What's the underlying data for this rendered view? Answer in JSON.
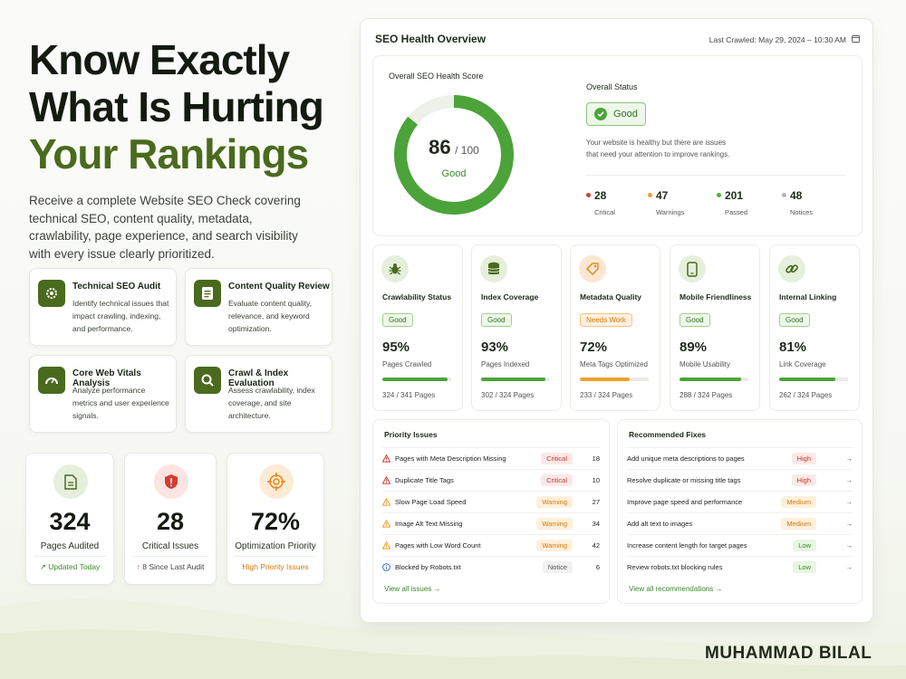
{
  "hero": {
    "line1": "Know Exactly",
    "line2": "What Is Hurting",
    "line3": "Your Rankings",
    "lead": "Receive a complete Website SEO Check covering technical SEO, content quality, metadata, crawlability, page experience, and search visibility with every issue clearly prioritized."
  },
  "features": [
    {
      "title": "Technical SEO Audit",
      "desc": "Identify technical issues that impact crawling, indexing, and performance.",
      "icon": "gear-icon"
    },
    {
      "title": "Content Quality Review",
      "desc": "Evaluate content quality, relevance, and keyword optimization.",
      "icon": "document-icon"
    },
    {
      "title": "Core Web Vitals Analysis",
      "desc": "Analyze performance metrics and user experience signals.",
      "icon": "gauge-icon"
    },
    {
      "title": "Crawl & Index Evaluation",
      "desc": "Assess crawlability, index coverage, and site architecture.",
      "icon": "search-icon"
    }
  ],
  "stats": [
    {
      "num": "324",
      "label": "Pages Audited",
      "sub": "Updated Today",
      "sub_color": "#3b8a2b",
      "icon": "page-icon"
    },
    {
      "num": "28",
      "label": "Critical Issues",
      "sub": "8 Since Last Audit",
      "sub_color": "#c0392b",
      "icon": "shield-alert-icon"
    },
    {
      "num": "72%",
      "label": "Optimization Priority",
      "sub": "High Priority Issues",
      "sub_color": "#d97706",
      "icon": "target-icon"
    }
  ],
  "dashboard": {
    "title": "SEO Health Overview",
    "last_crawled": "Last Crawled: May 29, 2024 – 10:30 AM",
    "score_title": "Overall SEO Health Score",
    "score": "86",
    "score_max": "/ 100",
    "score_value": 86,
    "score_label": "Good",
    "status_title": "Overall Status",
    "status": "Good",
    "status_desc1": "Your website is healthy but there are issues",
    "status_desc2": "that need your attention to improve rankings.",
    "counts": [
      {
        "num": "28",
        "label": "Critical",
        "color": "#d63b2f"
      },
      {
        "num": "47",
        "label": "Warnings",
        "color": "#f0a12b"
      },
      {
        "num": "201",
        "label": "Passed",
        "color": "#4caf3a"
      },
      {
        "num": "48",
        "label": "Notices",
        "color": "#b5b5b5"
      }
    ],
    "metrics": [
      {
        "title": "Crawlability Status",
        "badge": "Good",
        "pct": "95%",
        "pct_value": 0.95,
        "sub": "Pages Crawled",
        "count": "324 / 341 Pages",
        "icon": "bug-icon",
        "tone": "good"
      },
      {
        "title": "Index Coverage",
        "badge": "Good",
        "pct": "93%",
        "pct_value": 0.93,
        "sub": "Pages Indexed",
        "count": "302 / 324 Pages",
        "icon": "database-icon",
        "tone": "good"
      },
      {
        "title": "Metadata Quality",
        "badge": "Needs Work",
        "pct": "72%",
        "pct_value": 0.72,
        "sub": "Meta Tags Optimized",
        "count": "233 / 324 Pages",
        "icon": "tag-icon",
        "tone": "warn"
      },
      {
        "title": "Mobile Friendliness",
        "badge": "Good",
        "pct": "89%",
        "pct_value": 0.89,
        "sub": "Mobile Usability",
        "count": "288 / 324 Pages",
        "icon": "mobile-icon",
        "tone": "good"
      },
      {
        "title": "Internal Linking",
        "badge": "Good",
        "pct": "81%",
        "pct_value": 0.81,
        "sub": "Link Coverage",
        "count": "262 / 324 Pages",
        "icon": "link-icon",
        "tone": "good"
      }
    ],
    "priority": {
      "title": "Priority Issues",
      "link": "View all issues →",
      "rows": [
        {
          "text": "Pages with Meta Description Missing",
          "badge": "Critical",
          "num": "18",
          "kind": "crit"
        },
        {
          "text": "Duplicate Title Tags",
          "badge": "Critical",
          "num": "10",
          "kind": "crit"
        },
        {
          "text": "Slow Page Load Speed",
          "badge": "Warning",
          "num": "27",
          "kind": "warn"
        },
        {
          "text": "Image Alt Text Missing",
          "badge": "Warning",
          "num": "34",
          "kind": "warn"
        },
        {
          "text": "Pages with Low Word Count",
          "badge": "Warning",
          "num": "42",
          "kind": "warn"
        },
        {
          "text": "Blocked by Robots.txt",
          "badge": "Notice",
          "num": "6",
          "kind": "notc"
        }
      ]
    },
    "fixes": {
      "title": "Recommended Fixes",
      "link": "View all recommendations →",
      "rows": [
        {
          "text": "Add unique meta descriptions to pages",
          "badge": "High",
          "kind": "high"
        },
        {
          "text": "Resolve duplicate or missing title tags",
          "badge": "High",
          "kind": "high"
        },
        {
          "text": "Improve page speed and performance",
          "badge": "Medium",
          "kind": "med"
        },
        {
          "text": "Add alt text to images",
          "badge": "Medium",
          "kind": "med"
        },
        {
          "text": "Increase content length for target pages",
          "badge": "Low",
          "kind": "low"
        },
        {
          "text": "Review robots.txt blocking rules",
          "badge": "Low",
          "kind": "low"
        }
      ]
    }
  },
  "brand": "MUHAMMAD BILAL"
}
